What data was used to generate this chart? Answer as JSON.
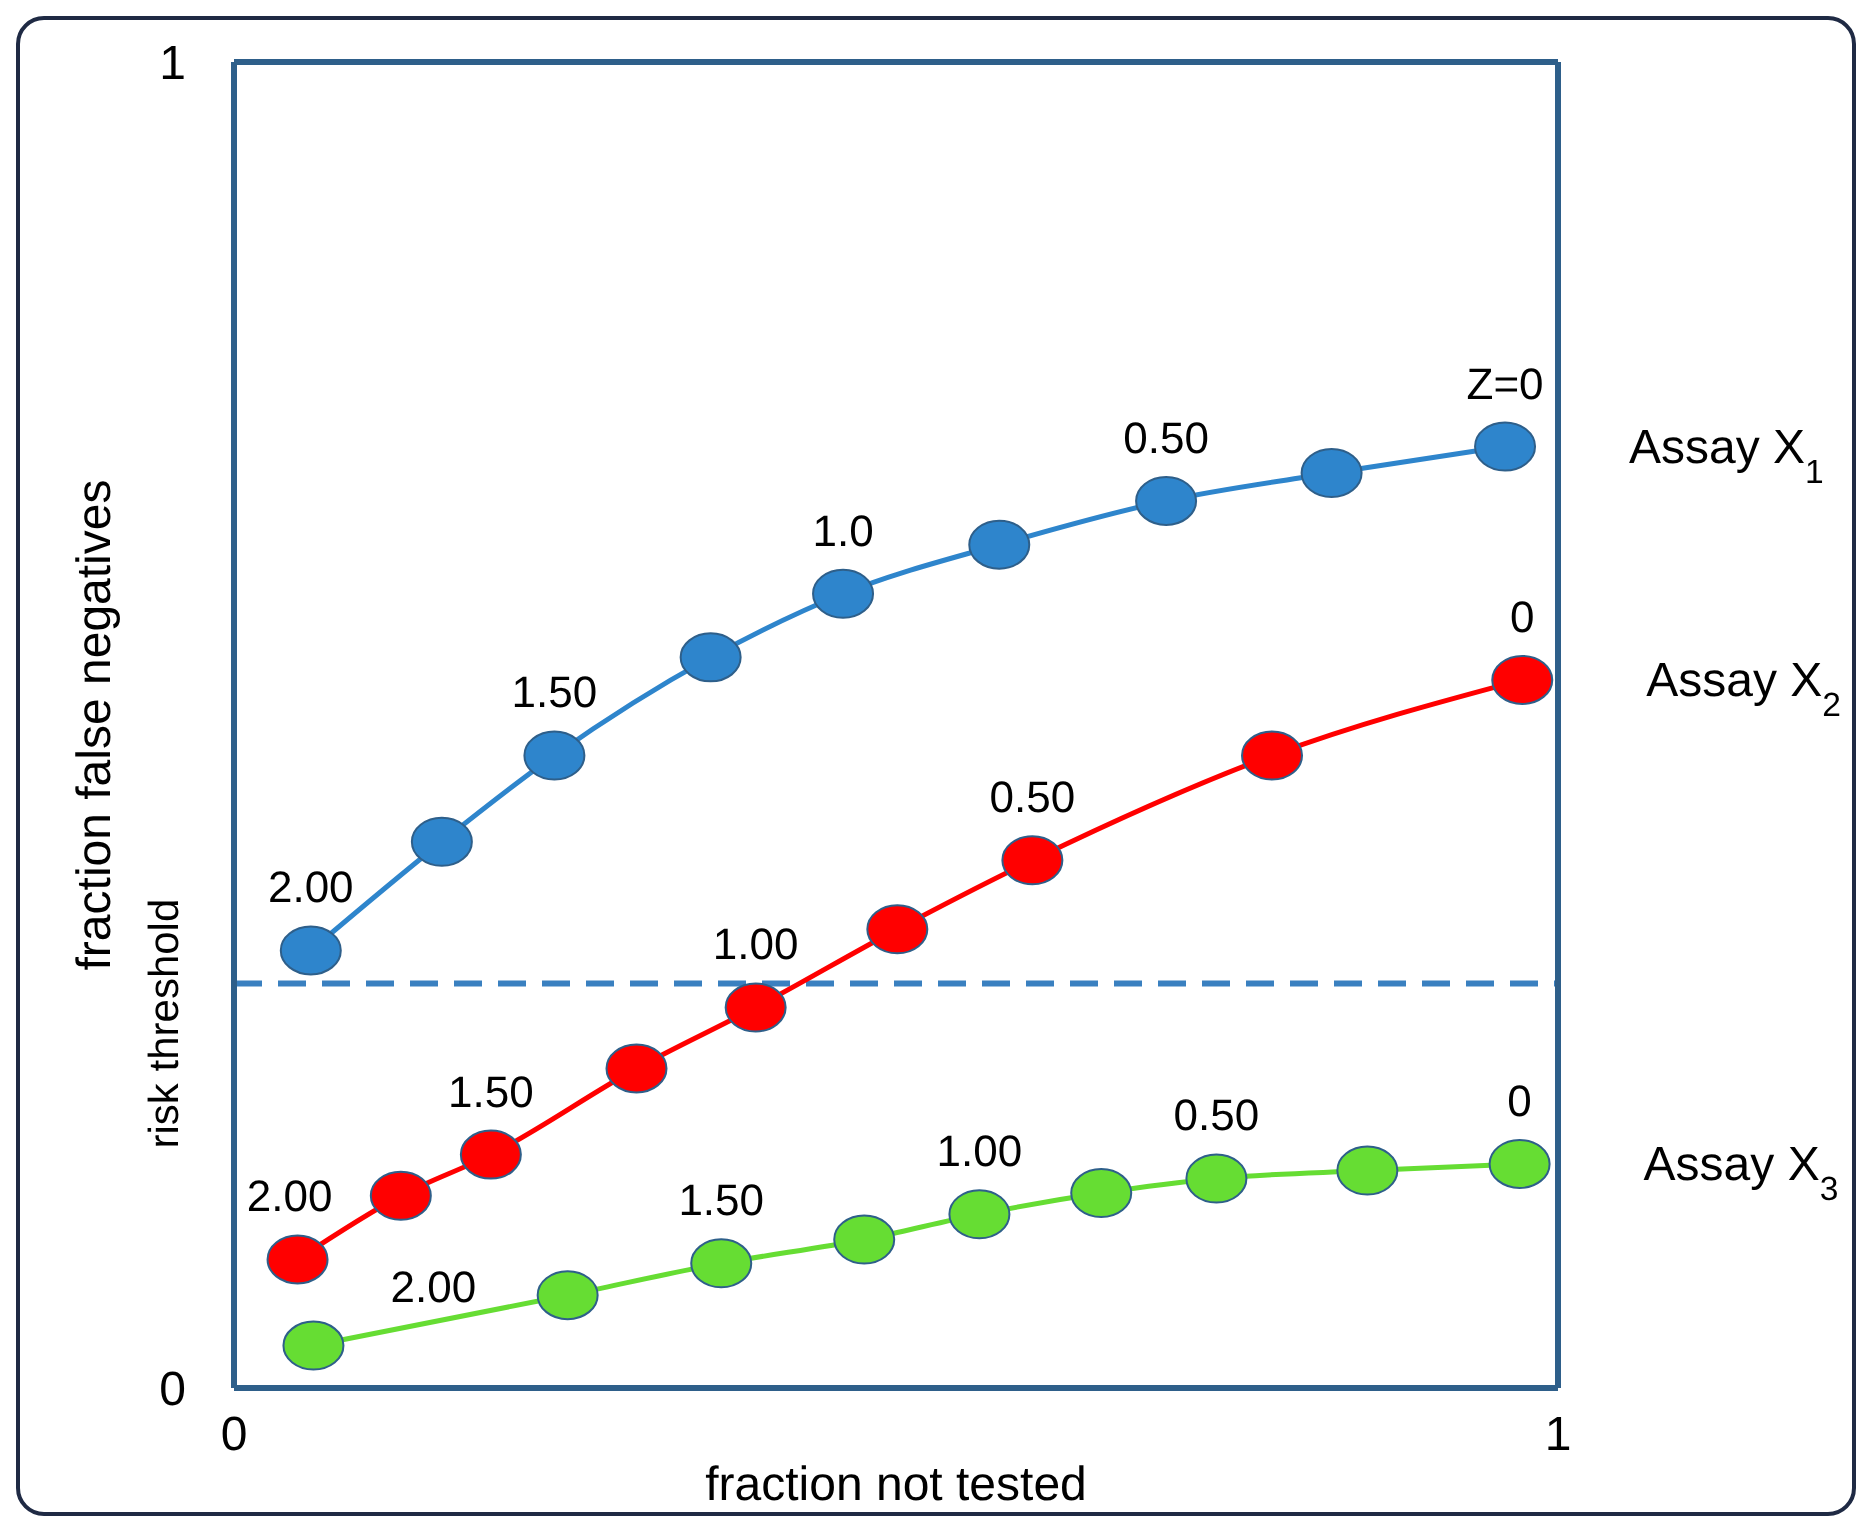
{
  "chart_data": {
    "type": "line",
    "xlabel": "fraction not tested",
    "ylabel": "fraction false negatives",
    "xlim": [
      0,
      1
    ],
    "xticks": [
      0,
      1
    ],
    "ylim": [
      0,
      1
    ],
    "yticks": [
      0,
      1
    ],
    "marker": "circle",
    "line_style": "solid",
    "series": [
      {
        "name": "Assay X$_{1}$",
        "color": "#2e85cc",
        "x": [
          0.058,
          0.157,
          0.242,
          0.36,
          0.46,
          0.578,
          0.704,
          0.829,
          0.96
        ],
        "values": [
          0.33,
          0.412,
          0.477,
          0.551,
          0.599,
          0.636,
          0.669,
          0.69,
          0.71
        ]
      },
      {
        "name": "Assay X$_{2}$",
        "color": "#ff0000",
        "x": [
          0.048,
          0.126,
          0.194,
          0.304,
          0.394,
          0.501,
          0.603,
          0.784,
          0.973
        ],
        "values": [
          0.097,
          0.145,
          0.176,
          0.241,
          0.287,
          0.346,
          0.398,
          0.477,
          0.534
        ]
      },
      {
        "name": "Assay X$_{3}$",
        "color": "#66dd33",
        "x": [
          0.06,
          0.252,
          0.368,
          0.476,
          0.563,
          0.655,
          0.742,
          0.856,
          0.971
        ],
        "values": [
          0.032,
          0.07,
          0.094,
          0.112,
          0.131,
          0.147,
          0.158,
          0.164,
          0.169
        ]
      }
    ],
    "ref_lines": [
      {
        "axis": "y",
        "value": 0.305,
        "label": "risk threshold",
        "color": "#3a80c0",
        "line_style": "dashed"
      }
    ],
    "annotations": [
      {
        "text": "2.00",
        "x": 0.058,
        "y": 0.33
      },
      {
        "text": "1.50",
        "x": 0.242,
        "y": 0.477
      },
      {
        "text": "1.0",
        "x": 0.46,
        "y": 0.599
      },
      {
        "text": "0.50",
        "x": 0.704,
        "y": 0.669
      },
      {
        "text": "Z=0",
        "x": 0.96,
        "y": 0.71
      },
      {
        "text": "2.00",
        "x": 0.048,
        "y": 0.097
      },
      {
        "text": "1.50",
        "x": 0.194,
        "y": 0.176
      },
      {
        "text": "1.00",
        "x": 0.394,
        "y": 0.287
      },
      {
        "text": "0.50",
        "x": 0.603,
        "y": 0.398
      },
      {
        "text": "0",
        "x": 0.973,
        "y": 0.534
      },
      {
        "text": "2.00",
        "x": 0.06,
        "y": 0.032
      },
      {
        "text": "1.50",
        "x": 0.368,
        "y": 0.094
      },
      {
        "text": "1.00",
        "x": 0.563,
        "y": 0.131
      },
      {
        "text": "0.50",
        "x": 0.742,
        "y": 0.158
      },
      {
        "text": "0",
        "x": 0.971,
        "y": 0.169
      }
    ]
  }
}
